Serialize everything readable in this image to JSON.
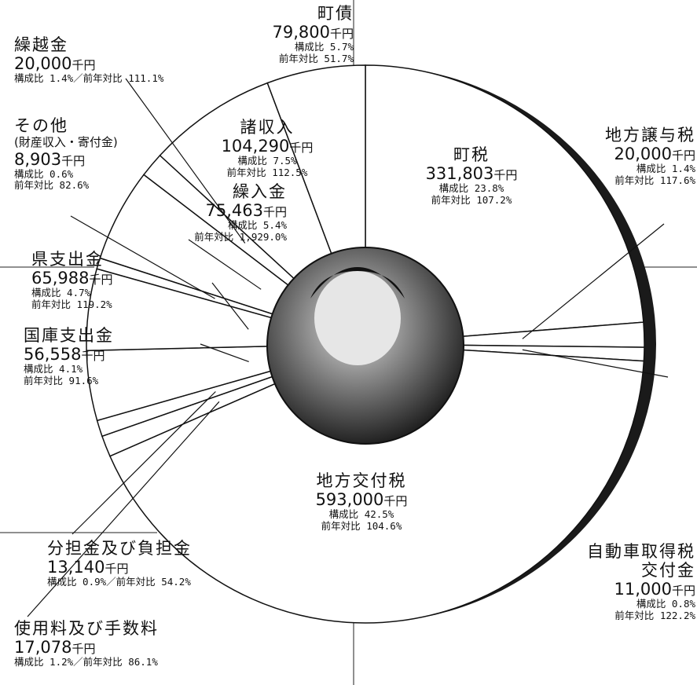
{
  "chart_data": {
    "type": "pie",
    "categories": [
      "町税",
      "地方譲与税",
      "自動車取得税交付金",
      "地方交付税",
      "使用料及び手数料",
      "分担金及び負担金",
      "国庫支出金",
      "県支出金",
      "その他",
      "繰入金",
      "繰越金",
      "諸収入",
      "町債"
    ],
    "other_note": "(財産収入・寄付金)",
    "values": [
      331803,
      20000,
      11000,
      593000,
      17078,
      13140,
      56558,
      65988,
      8903,
      75463,
      20000,
      104290,
      79800
    ],
    "value_labels": [
      "331,803",
      "20,000",
      "11,000",
      "593,000",
      "17,078",
      "13,140",
      "56,558",
      "65,988",
      "8,903",
      "75,463",
      "20,000",
      "104,290",
      "79,800"
    ],
    "unit": "千円",
    "share_label": "構成比",
    "shares": [
      "23.8%",
      "1.4%",
      "0.8%",
      "42.5%",
      "1.2%",
      "0.9%",
      "4.1%",
      "4.7%",
      "0.6%",
      "5.4%",
      "1.4%",
      "7.5%",
      "5.7%"
    ],
    "yoy_label": "前年対比",
    "yoy": [
      "107.2%",
      "117.6%",
      "122.2%",
      "104.6%",
      "86.1%",
      "54.2%",
      "91.6%",
      "119.2%",
      "82.6%",
      "1,929.0%",
      "111.1%",
      "112.5%",
      "51.7%"
    ],
    "separator": "／",
    "color": "#ffffff"
  }
}
